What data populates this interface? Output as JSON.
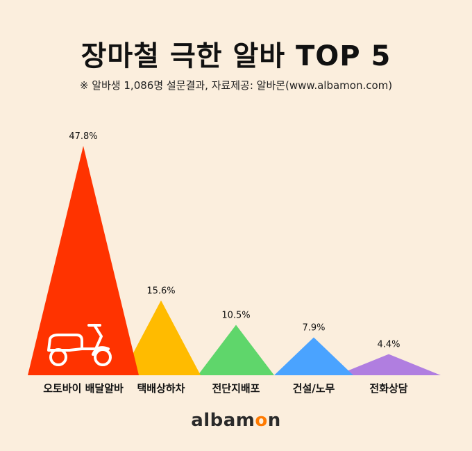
{
  "title": "장마철 극한 알바 TOP 5",
  "subtitle": "※ 알바생 1,086명 설문결과, 자료제공: 알바몬(www.albamon.com)",
  "logo": {
    "part1": "albam",
    "part2": "o",
    "part3": "n"
  },
  "colors": {
    "background": "#fbeedd",
    "series": [
      "#ff3300",
      "#ffbb00",
      "#5fd66b",
      "#4aa3ff",
      "#b07ee0"
    ]
  },
  "chart_data": {
    "type": "bar",
    "title": "장마철 극한 알바 TOP 5",
    "categories": [
      "오토바이 배달알바",
      "택배상하차",
      "전단지배포",
      "건설/노무",
      "전화상담"
    ],
    "values": [
      47.8,
      15.6,
      10.5,
      7.9,
      4.4
    ],
    "value_labels": [
      "47.8%",
      "15.6%",
      "10.5%",
      "7.9%",
      "4.4%"
    ],
    "unit": "%",
    "ylim": [
      0,
      47.8
    ],
    "grid": false,
    "legend": "none",
    "mark_shape": "triangle",
    "icons": [
      "scooter-icon"
    ]
  }
}
